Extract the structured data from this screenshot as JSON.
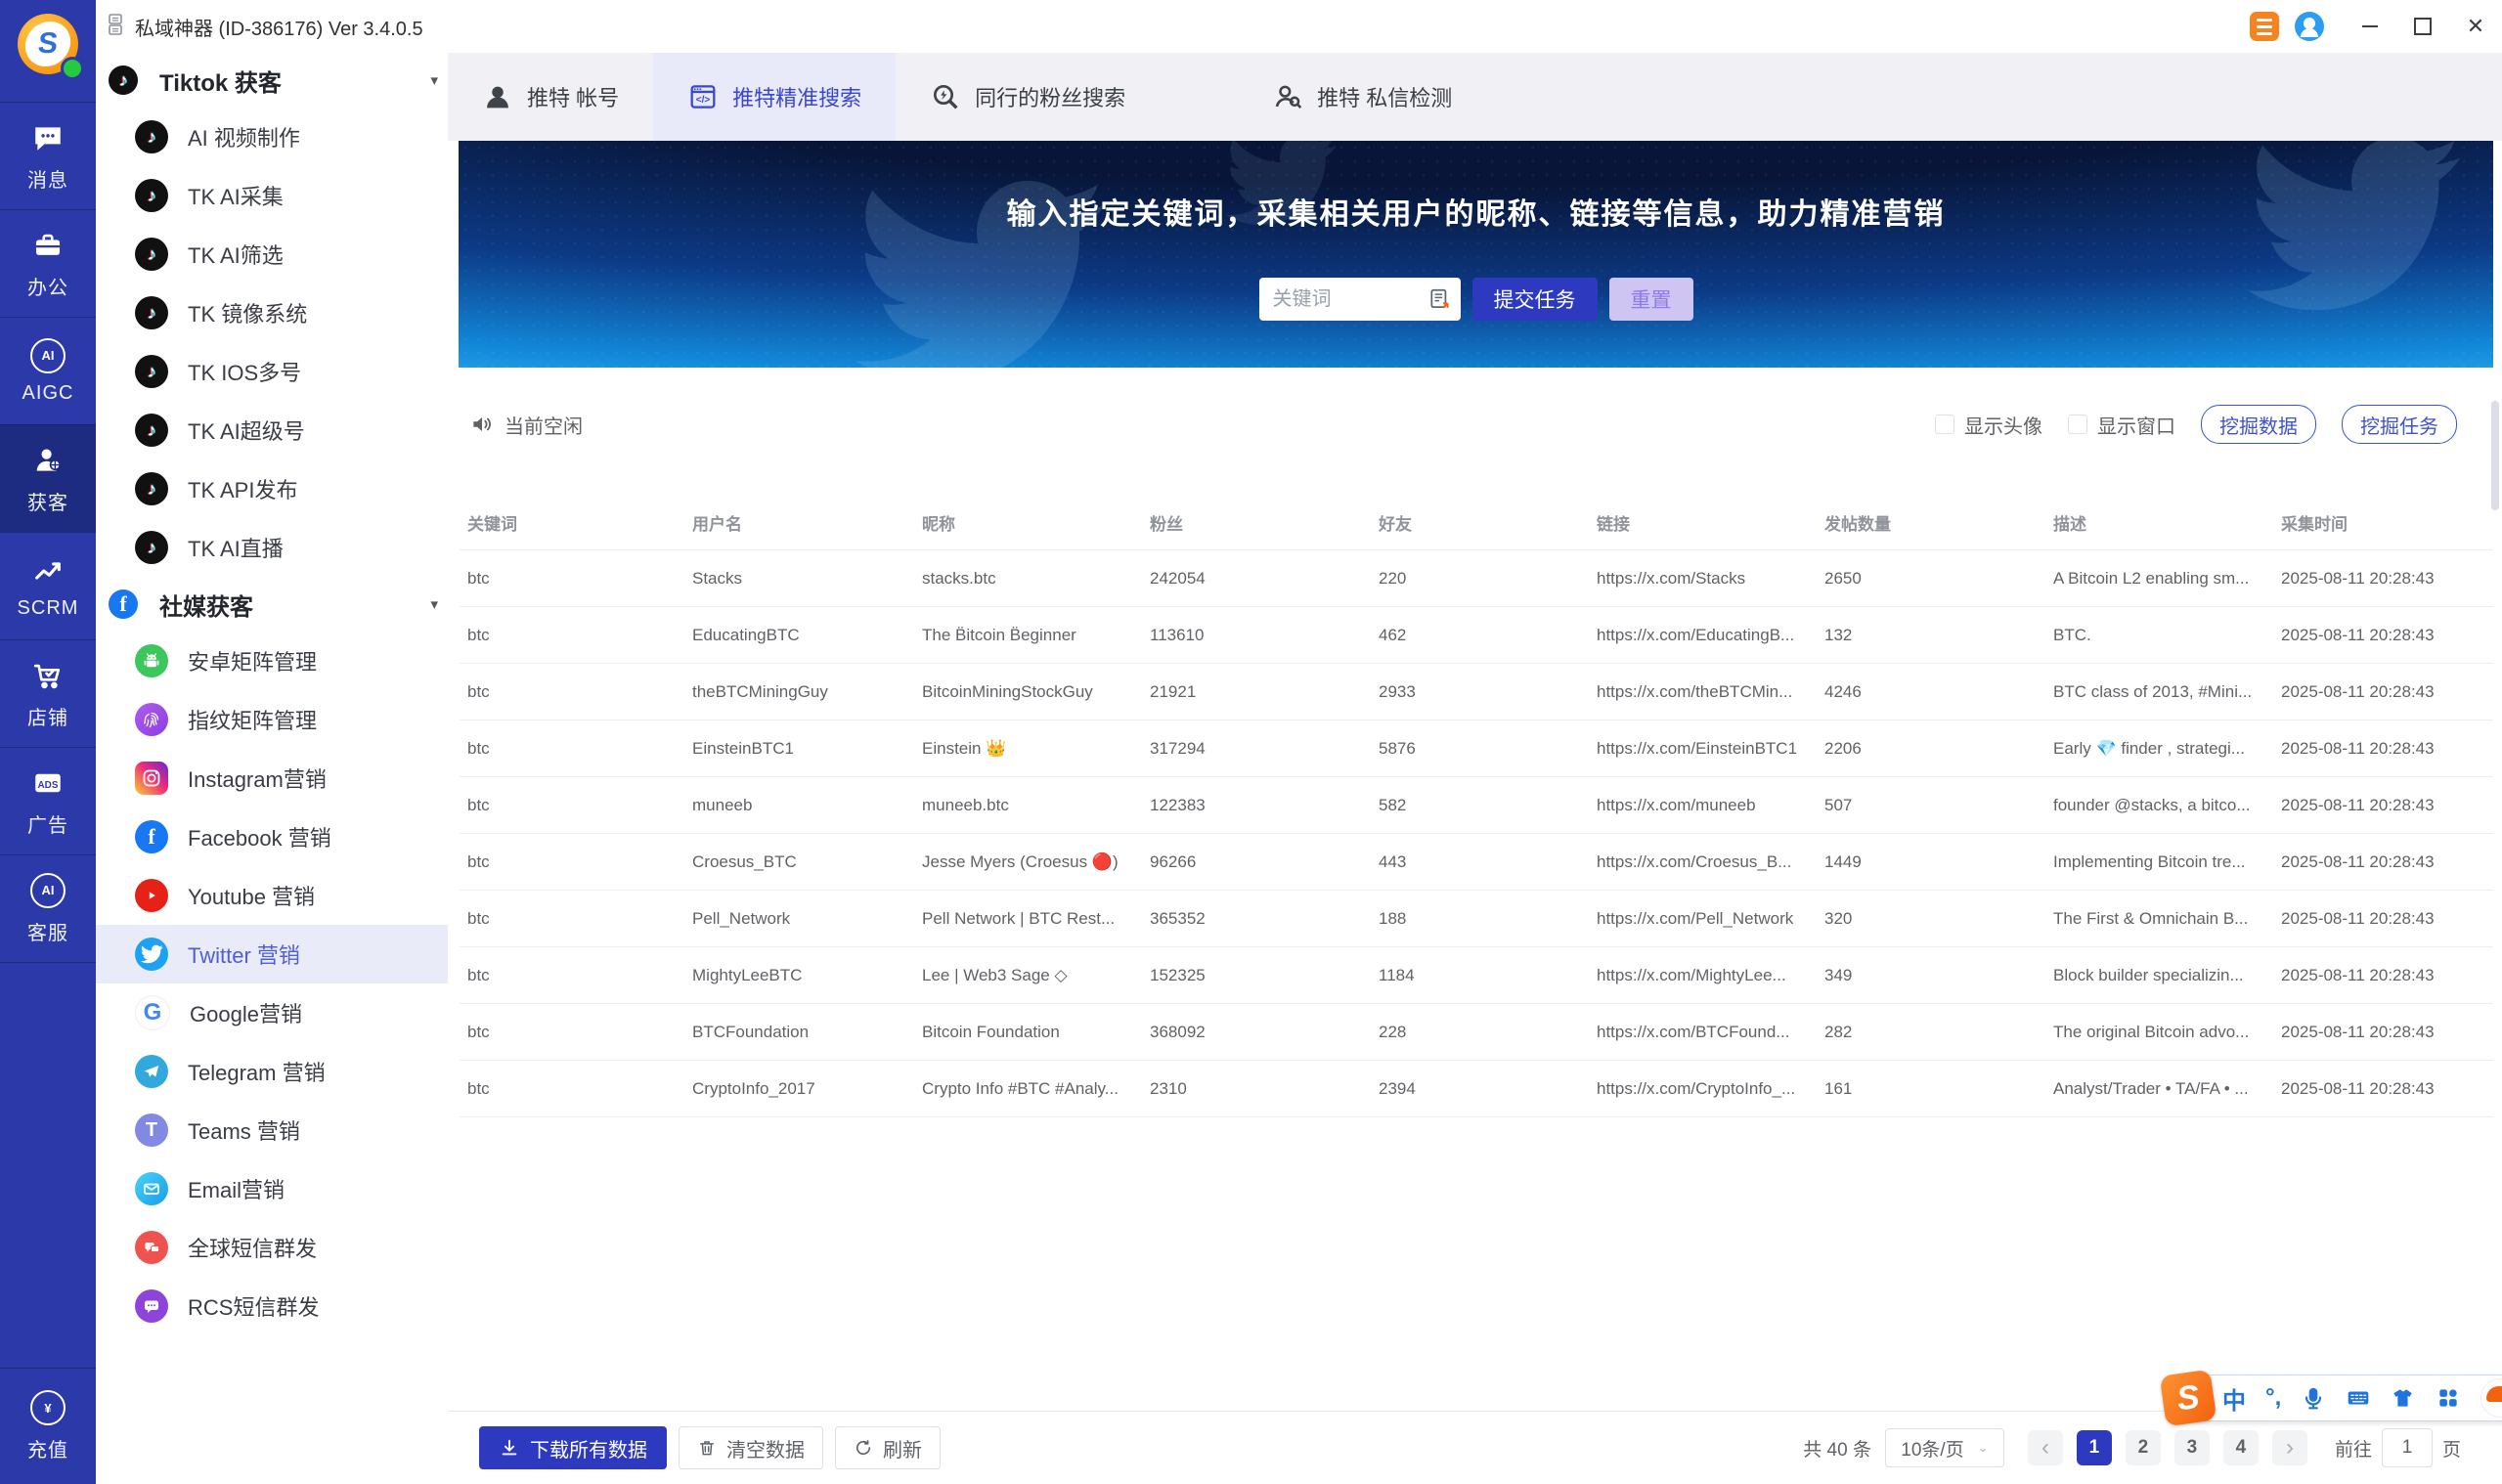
{
  "titlebar": {
    "title": "私域神器 (ID-386176) Ver 3.4.0.5"
  },
  "glyphs": {
    "tiktok": "♪",
    "facebook": "f",
    "google": "G",
    "teams": "T",
    "email": "✉",
    "aigc": "AI",
    "ads": "ADS",
    "service": "AI",
    "recharge": "¥",
    "sogou": "S",
    "caret_down": "▾",
    "select_caret": "⌄",
    "prev": "‹",
    "next": "›"
  },
  "rail": {
    "items": [
      {
        "label": "消息"
      },
      {
        "label": "办公"
      },
      {
        "label": "AIGC"
      },
      {
        "label": "获客"
      },
      {
        "label": "SCRM"
      },
      {
        "label": "店铺"
      },
      {
        "label": "广告"
      },
      {
        "label": "客服"
      }
    ],
    "recharge_label": "充值"
  },
  "sidebar": {
    "sections": [
      {
        "title": "Tiktok 获客",
        "items": [
          "AI 视频制作",
          "TK AI采集",
          "TK AI筛选",
          "TK 镜像系统",
          "TK IOS多号",
          "TK AI超级号",
          "TK API发布",
          "TK AI直播"
        ]
      },
      {
        "title": "社媒获客",
        "items": [
          "安卓矩阵管理",
          "指纹矩阵管理",
          "Instagram营销",
          "Facebook 营销",
          "Youtube 营销",
          "Twitter 营销",
          "Google营销",
          "Telegram 营销",
          "Teams 营销",
          "Email营销",
          "全球短信群发",
          "RCS短信群发"
        ]
      }
    ]
  },
  "tabs": [
    {
      "label": "推特 帐号"
    },
    {
      "label": "推特精准搜索"
    },
    {
      "label": "同行的粉丝搜索"
    },
    {
      "label": "推特 私信检测"
    }
  ],
  "banner": {
    "title": "输入指定关键词，采集相关用户的昵称、链接等信息，助力精准营销",
    "input_placeholder": "关键词",
    "submit_label": "提交任务",
    "reset_label": "重置"
  },
  "status": {
    "text": "当前空闲",
    "show_avatar_label": "显示头像",
    "show_window_label": "显示窗口",
    "mine_data_label": "挖掘数据",
    "mine_task_label": "挖掘任务"
  },
  "table": {
    "columns": [
      "关键词",
      "用户名",
      "昵称",
      "粉丝",
      "好友",
      "链接",
      "发帖数量",
      "描述",
      "采集时间"
    ],
    "keys": [
      "keyword",
      "username",
      "nickname",
      "fans",
      "friends",
      "link",
      "posts",
      "desc",
      "time"
    ],
    "rows": [
      [
        "btc",
        "Stacks",
        "stacks.btc",
        "242054",
        "220",
        "https://x.com/Stacks",
        "2650",
        "A Bitcoin L2 enabling sm...",
        "2025-08-11 20:28:43"
      ],
      [
        "btc",
        "EducatingBTC",
        "The B̈itcoin B̈eginner",
        "113610",
        "462",
        "https://x.com/EducatingB...",
        "132",
        "BTC.",
        "2025-08-11 20:28:43"
      ],
      [
        "btc",
        "theBTCMiningGuy",
        "BitcoinMiningStockGuy",
        "21921",
        "2933",
        "https://x.com/theBTCMin...",
        "4246",
        "BTC class of 2013, #Mini...",
        "2025-08-11 20:28:43"
      ],
      [
        "btc",
        "EinsteinBTC1",
        "Einstein 👑",
        "317294",
        "5876",
        "https://x.com/EinsteinBTC1",
        "2206",
        "Early 💎 finder , strategi...",
        "2025-08-11 20:28:43"
      ],
      [
        "btc",
        "muneeb",
        "muneeb.btc",
        "122383",
        "582",
        "https://x.com/muneeb",
        "507",
        "founder @stacks, a bitco...",
        "2025-08-11 20:28:43"
      ],
      [
        "btc",
        "Croesus_BTC",
        "Jesse Myers (Croesus 🔴)",
        "96266",
        "443",
        "https://x.com/Croesus_B...",
        "1449",
        "Implementing Bitcoin tre...",
        "2025-08-11 20:28:43"
      ],
      [
        "btc",
        "Pell_Network",
        "Pell Network | BTC Rest...",
        "365352",
        "188",
        "https://x.com/Pell_Network",
        "320",
        "The First & Omnichain B...",
        "2025-08-11 20:28:43"
      ],
      [
        "btc",
        "MightyLeeBTC",
        "Lee | Web3 Sage ◇",
        "152325",
        "1184",
        "https://x.com/MightyLee...",
        "349",
        "Block builder specializin...",
        "2025-08-11 20:28:43"
      ],
      [
        "btc",
        "BTCFoundation",
        "Bitcoin Foundation",
        "368092",
        "228",
        "https://x.com/BTCFound...",
        "282",
        "The original Bitcoin advo...",
        "2025-08-11 20:28:43"
      ],
      [
        "btc",
        "CryptoInfo_2017",
        "Crypto Info #BTC #Analy...",
        "2310",
        "2394",
        "https://x.com/CryptoInfo_...",
        "161",
        "Analyst/Trader • TA/FA • ...",
        "2025-08-11 20:28:43"
      ]
    ]
  },
  "footer": {
    "download_label": "下载所有数据",
    "clear_label": "清空数据",
    "refresh_label": "刷新",
    "total": "共 40 条",
    "page_size": "10条/页",
    "pages": [
      "1",
      "2",
      "3",
      "4"
    ],
    "active_page": "1",
    "goto_label": "前往",
    "goto_value": "1",
    "goto_unit": "页"
  },
  "ime": {
    "mode": "中",
    "punct": "°,"
  }
}
